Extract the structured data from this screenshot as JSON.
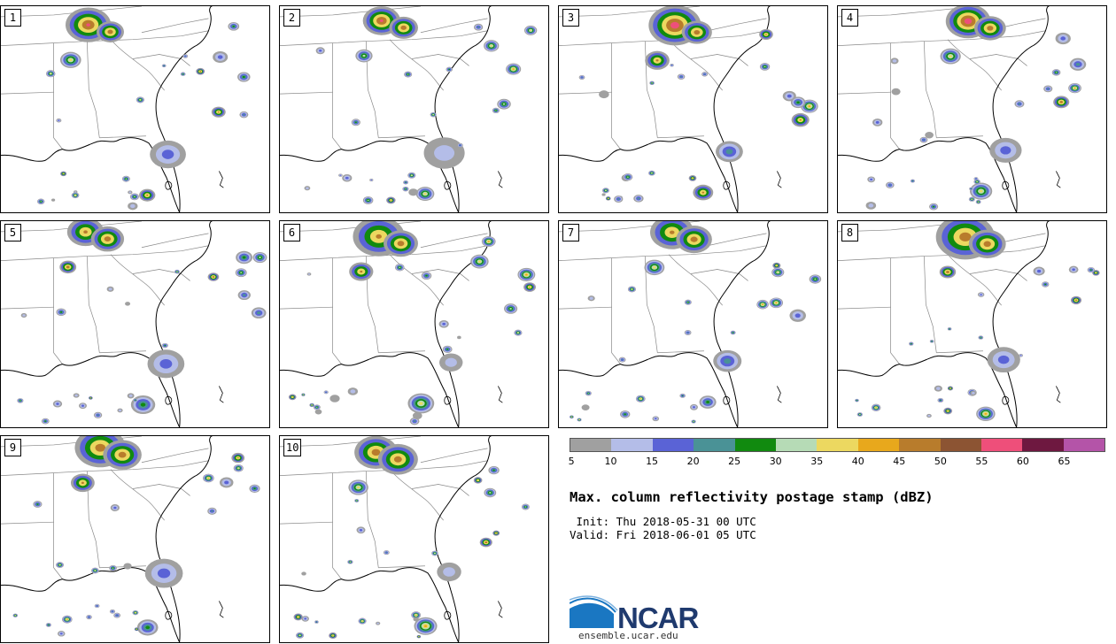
{
  "panels": [
    {
      "label": "1"
    },
    {
      "label": "2"
    },
    {
      "label": "3"
    },
    {
      "label": "4"
    },
    {
      "label": "5"
    },
    {
      "label": "6"
    },
    {
      "label": "7"
    },
    {
      "label": "8"
    },
    {
      "label": "9"
    },
    {
      "label": "10"
    }
  ],
  "colorbar": {
    "colors": [
      "#a0a0a0",
      "#b4bde8",
      "#5a63d6",
      "#4a9296",
      "#118a0f",
      "#b6dbb6",
      "#ecd860",
      "#e8a81c",
      "#b87c2c",
      "#8c5433",
      "#ee4f7a",
      "#6e1840",
      "#b454a8"
    ],
    "ticks": [
      "5",
      "10",
      "15",
      "20",
      "25",
      "30",
      "35",
      "40",
      "45",
      "50",
      "55",
      "60",
      "65"
    ]
  },
  "title": "Max. column reflectivity postage stamp (dBZ)",
  "init": " Init: Thu 2018-05-31 00 UTC",
  "valid": "Valid: Fri 2018-06-01 05 UTC",
  "logo": {
    "text": "NCAR",
    "url": "ensemble.ucar.edu",
    "colors": {
      "blue": "#1a77c2",
      "dark": "#1f3a6e"
    }
  }
}
